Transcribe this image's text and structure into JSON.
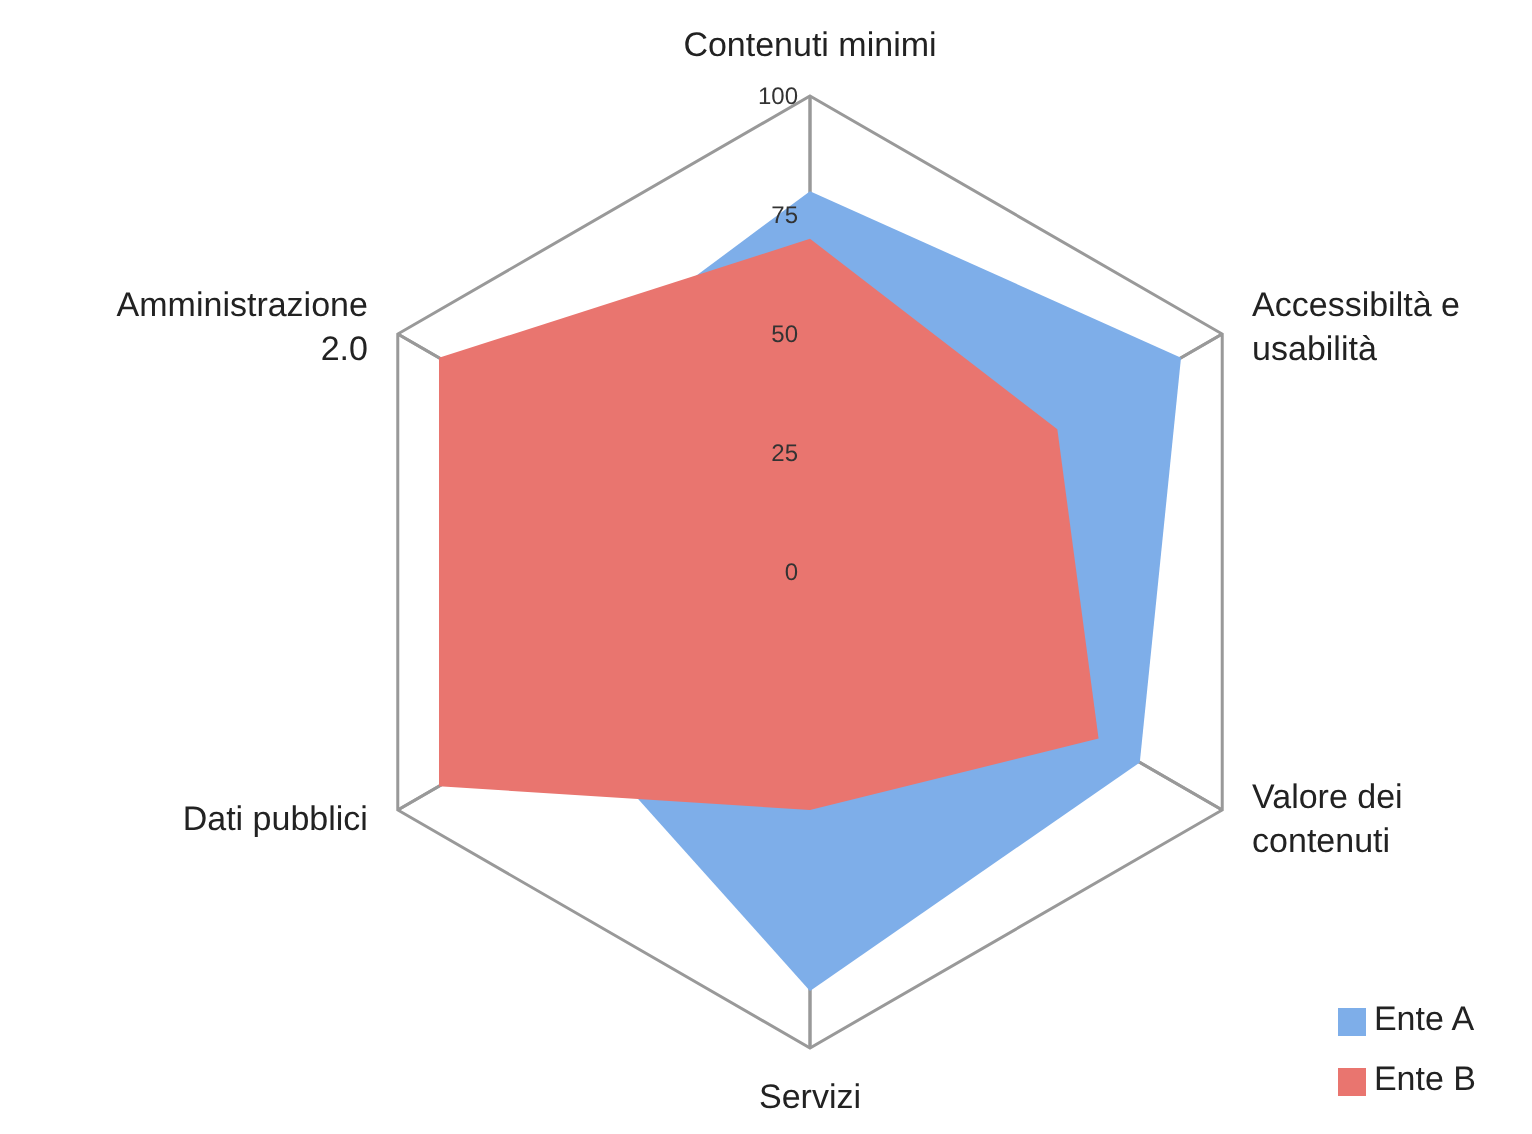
{
  "chart_data": {
    "type": "radar",
    "categories": [
      "Contenuti minimi",
      "Accessibiltà e usabilità",
      "Valore dei contenuti",
      "Servizi",
      "Dati pubblici",
      "Amministrazione 2.0"
    ],
    "series": [
      {
        "name": "Ente A",
        "color": "#7eaee9",
        "values": [
          80,
          90,
          80,
          88,
          60,
          70
        ]
      },
      {
        "name": "Ente B",
        "color": "#e9756f",
        "values": [
          70,
          60,
          70,
          50,
          90,
          90
        ]
      }
    ],
    "ylim": [
      0,
      100
    ],
    "yticks": [
      0,
      25,
      50,
      75,
      100
    ],
    "grid": true,
    "legend": "bottom right"
  }
}
